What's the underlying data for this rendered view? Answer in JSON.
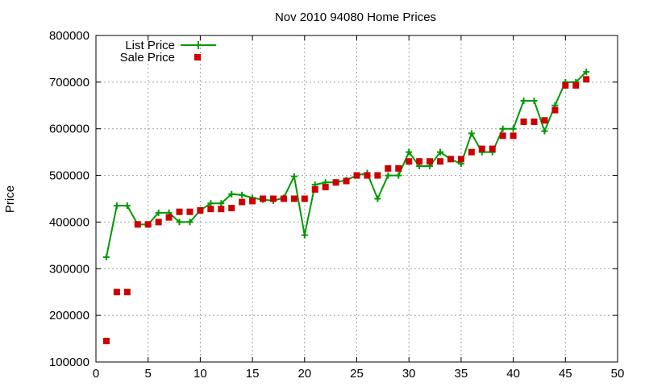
{
  "chart_data": {
    "type": "line",
    "title": "Nov 2010 94080 Home Prices",
    "xlabel": "",
    "ylabel": "Price",
    "xlim": [
      0,
      50
    ],
    "ylim": [
      100000,
      800000
    ],
    "x_ticks": [
      0,
      5,
      10,
      15,
      20,
      25,
      30,
      35,
      40,
      45,
      50
    ],
    "y_ticks": [
      100000,
      200000,
      300000,
      400000,
      500000,
      600000,
      700000,
      800000
    ],
    "grid": true,
    "legend_position": "top-left",
    "series": [
      {
        "name": "List Price",
        "style": "line-plus",
        "color": "#009900",
        "x": [
          1,
          2,
          3,
          4,
          5,
          6,
          7,
          8,
          9,
          10,
          11,
          12,
          13,
          14,
          15,
          16,
          17,
          18,
          19,
          20,
          21,
          22,
          23,
          24,
          25,
          26,
          27,
          28,
          29,
          30,
          31,
          32,
          33,
          34,
          35,
          36,
          37,
          38,
          39,
          40,
          41,
          42,
          43,
          44,
          45,
          46,
          47
        ],
        "values": [
          325000,
          435000,
          435000,
          395000,
          395000,
          420000,
          420000,
          400000,
          400000,
          425000,
          440000,
          440000,
          460000,
          458000,
          452000,
          448000,
          446000,
          452000,
          498000,
          372000,
          480000,
          485000,
          485000,
          490000,
          500000,
          505000,
          450000,
          500000,
          500000,
          550000,
          520000,
          520000,
          550000,
          535000,
          525000,
          590000,
          550000,
          550000,
          600000,
          600000,
          660000,
          660000,
          595000,
          650000,
          700000,
          700000,
          722000
        ]
      },
      {
        "name": "Sale Price",
        "style": "square",
        "color": "#cc0000",
        "x": [
          1,
          2,
          3,
          4,
          5,
          6,
          7,
          8,
          9,
          10,
          11,
          12,
          13,
          14,
          15,
          16,
          17,
          18,
          19,
          20,
          21,
          22,
          23,
          24,
          25,
          26,
          27,
          28,
          29,
          30,
          31,
          32,
          33,
          34,
          35,
          36,
          37,
          38,
          39,
          40,
          41,
          42,
          43,
          44,
          45,
          46,
          47
        ],
        "values": [
          145000,
          250000,
          250000,
          395000,
          395000,
          400000,
          410000,
          422000,
          422000,
          425000,
          428000,
          428000,
          430000,
          443000,
          445000,
          450000,
          450000,
          450000,
          450000,
          450000,
          470000,
          475000,
          485000,
          488000,
          500000,
          500000,
          500000,
          515000,
          515000,
          530000,
          530000,
          530000,
          530000,
          535000,
          535000,
          550000,
          557000,
          557000,
          585000,
          585000,
          615000,
          615000,
          618000,
          640000,
          693000,
          693000,
          706000
        ]
      }
    ]
  }
}
